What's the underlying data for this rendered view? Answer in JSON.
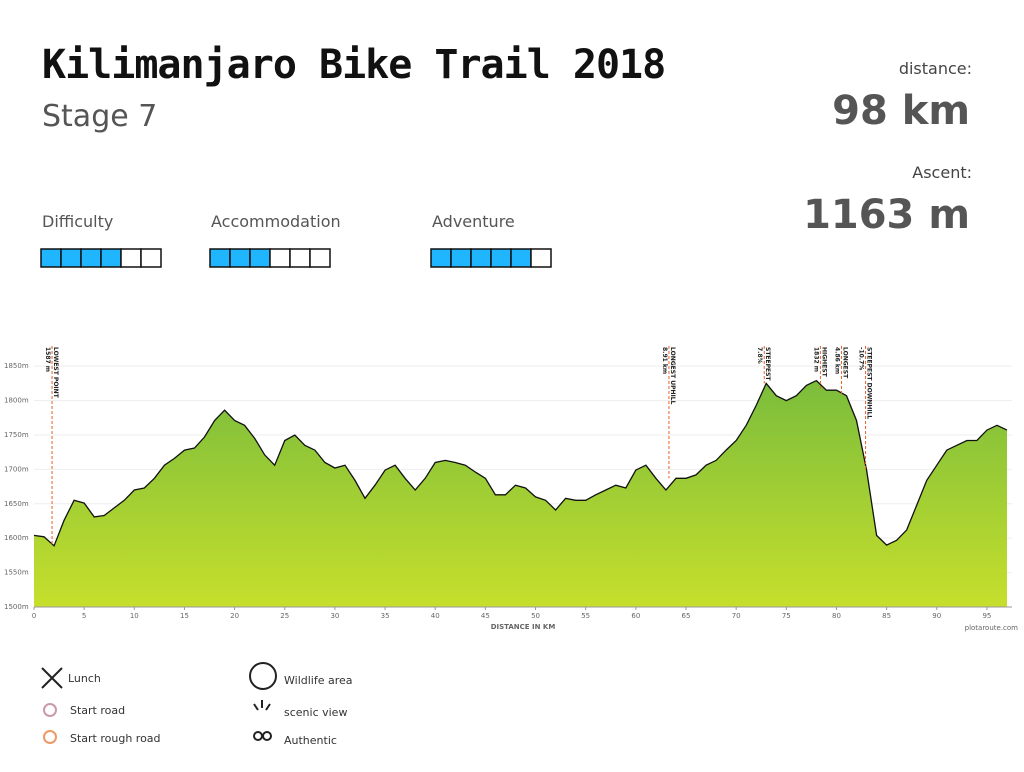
{
  "header": {
    "title": "Kilimanjaro Bike Trail 2018",
    "subtitle": "Stage 7"
  },
  "stats": [
    {
      "label": "distance:",
      "value": "98 km"
    },
    {
      "label": "Ascent:",
      "value": "1163 m"
    }
  ],
  "ratings": [
    {
      "label": "Difficulty",
      "filled": 4,
      "total": 6
    },
    {
      "label": "Accommodation",
      "filled": 3,
      "total": 6
    },
    {
      "label": "Adventure",
      "filled": 5,
      "total": 6
    }
  ],
  "chart_data": {
    "type": "area",
    "x_label": "DISTANCE IN KM",
    "credit": "plotaroute.com",
    "x": [
      0,
      1,
      2,
      3,
      4,
      5,
      6,
      7,
      8,
      9,
      10,
      11,
      12,
      13,
      14,
      15,
      16,
      17,
      18,
      19,
      20,
      21,
      22,
      23,
      24,
      25,
      26,
      27,
      28,
      29,
      30,
      31,
      32,
      33,
      34,
      35,
      36,
      37,
      38,
      39,
      40,
      41,
      42,
      43,
      44,
      45,
      46,
      47,
      48,
      49,
      50,
      51,
      52,
      53,
      54,
      55,
      56,
      57,
      58,
      59,
      60,
      61,
      62,
      63,
      64,
      65,
      66,
      67,
      68,
      69,
      70,
      71,
      72,
      73,
      74,
      75,
      76,
      77,
      78,
      79,
      80,
      81,
      82,
      83,
      84,
      85,
      86,
      87,
      88,
      89,
      90,
      91,
      92,
      93,
      94,
      95,
      96,
      97
    ],
    "values": [
      1604,
      1602,
      1589,
      1626,
      1655,
      1651,
      1631,
      1633,
      1644,
      1655,
      1670,
      1673,
      1687,
      1706,
      1716,
      1728,
      1731,
      1747,
      1771,
      1786,
      1771,
      1764,
      1745,
      1721,
      1706,
      1742,
      1750,
      1735,
      1728,
      1710,
      1702,
      1706,
      1684,
      1658,
      1677,
      1699,
      1706,
      1687,
      1670,
      1687,
      1710,
      1713,
      1710,
      1706,
      1696,
      1687,
      1663,
      1663,
      1677,
      1673,
      1660,
      1655,
      1641,
      1658,
      1655,
      1655,
      1663,
      1670,
      1677,
      1673,
      1699,
      1706,
      1687,
      1670,
      1687,
      1687,
      1692,
      1706,
      1713,
      1728,
      1742,
      1764,
      1793,
      1825,
      1807,
      1800,
      1807,
      1822,
      1829,
      1815,
      1815,
      1807,
      1771,
      1699,
      1604,
      1590,
      1597,
      1612,
      1648,
      1684,
      1706,
      1728,
      1735,
      1742,
      1742,
      1757,
      1764,
      1757
    ],
    "xlim": [
      0,
      97.5
    ],
    "ylim": [
      1500,
      1888
    ],
    "xticks": [
      0,
      5,
      10,
      15,
      20,
      25,
      30,
      35,
      40,
      45,
      50,
      55,
      60,
      65,
      70,
      75,
      80,
      85,
      90,
      95
    ],
    "yticks": [
      {
        "value": 1500,
        "label": "1500m"
      },
      {
        "value": 1550,
        "label": "1550m"
      },
      {
        "value": 1600,
        "label": "1600m"
      },
      {
        "value": 1650,
        "label": "1650m"
      },
      {
        "value": 1700,
        "label": "1700m"
      },
      {
        "value": 1750,
        "label": "1750m"
      },
      {
        "value": 1800,
        "label": "1800m"
      },
      {
        "value": 1850,
        "label": "1850m"
      }
    ],
    "grid": true,
    "annotations": [
      {
        "x": 1.8,
        "label": "LOWEST POINT",
        "value_label": "1587 m"
      },
      {
        "x": 63.3,
        "label": "LONGEST UPHILL",
        "value_label": "8.91 km"
      },
      {
        "x": 72.8,
        "label": "STEEPEST",
        "value_label": "7.8%"
      },
      {
        "x": 78.4,
        "label": "HIGHEST",
        "value_label": "1832 m"
      },
      {
        "x": 80.5,
        "label": "LONGEST",
        "value_label": "4.86 km"
      },
      {
        "x": 82.9,
        "label": "STEEPEST DOWNHILL",
        "value_label": "-10.7%"
      }
    ]
  },
  "legend": [
    "Lunch",
    "Start road",
    "Start rough road",
    "Wildlife area",
    "scenic view",
    "Authentic"
  ]
}
